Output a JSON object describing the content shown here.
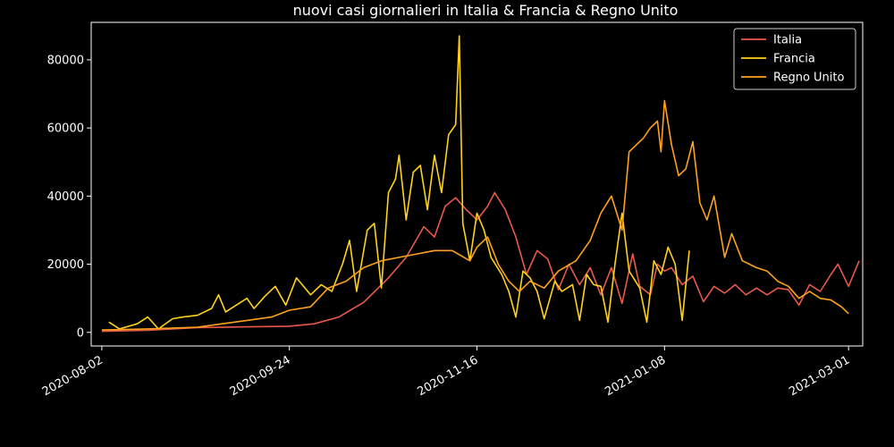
{
  "chart_data": {
    "type": "line",
    "title": "nuovi casi giornalieri in Italia & Francia & Regno Unito",
    "xlabel": "",
    "ylabel": "",
    "x_range": [
      "2020-07-30",
      "2021-03-05"
    ],
    "ylim": [
      -4000,
      91000
    ],
    "x_ticks": [
      "2020-08-02",
      "2020-09-24",
      "2020-11-16",
      "2021-01-08",
      "2021-03-01"
    ],
    "y_ticks": [
      0,
      20000,
      40000,
      60000,
      80000
    ],
    "y_tick_labels": [
      "0",
      "20000",
      "40000",
      "60000",
      "80000"
    ],
    "grid": false,
    "legend_position": "top-right",
    "series": [
      {
        "name": "Italia",
        "color": "#e8594a",
        "points": [
          [
            "2020-08-02",
            300
          ],
          [
            "2020-08-15",
            600
          ],
          [
            "2020-08-29",
            1400
          ],
          [
            "2020-09-10",
            1600
          ],
          [
            "2020-09-24",
            1800
          ],
          [
            "2020-10-01",
            2500
          ],
          [
            "2020-10-08",
            4500
          ],
          [
            "2020-10-15",
            8800
          ],
          [
            "2020-10-22",
            16000
          ],
          [
            "2020-10-27",
            22000
          ],
          [
            "2020-11-01",
            31000
          ],
          [
            "2020-11-04",
            28000
          ],
          [
            "2020-11-07",
            37000
          ],
          [
            "2020-11-10",
            39500
          ],
          [
            "2020-11-13",
            36000
          ],
          [
            "2020-11-16",
            33000
          ],
          [
            "2020-11-19",
            37000
          ],
          [
            "2020-11-21",
            41000
          ],
          [
            "2020-11-24",
            36000
          ],
          [
            "2020-11-27",
            28000
          ],
          [
            "2020-11-30",
            17000
          ],
          [
            "2020-12-03",
            24000
          ],
          [
            "2020-12-06",
            21500
          ],
          [
            "2020-12-09",
            12500
          ],
          [
            "2020-12-12",
            20000
          ],
          [
            "2020-12-15",
            14000
          ],
          [
            "2020-12-18",
            19000
          ],
          [
            "2020-12-21",
            11000
          ],
          [
            "2020-12-24",
            19000
          ],
          [
            "2020-12-27",
            8500
          ],
          [
            "2020-12-30",
            23000
          ],
          [
            "2021-01-01",
            13500
          ],
          [
            "2021-01-04",
            11000
          ],
          [
            "2021-01-06",
            20000
          ],
          [
            "2021-01-08",
            18000
          ],
          [
            "2021-01-10",
            19000
          ],
          [
            "2021-01-13",
            14000
          ],
          [
            "2021-01-16",
            16500
          ],
          [
            "2021-01-19",
            9000
          ],
          [
            "2021-01-22",
            13500
          ],
          [
            "2021-01-25",
            11500
          ],
          [
            "2021-01-28",
            14000
          ],
          [
            "2021-01-31",
            11000
          ],
          [
            "2021-02-03",
            13000
          ],
          [
            "2021-02-06",
            11000
          ],
          [
            "2021-02-09",
            13000
          ],
          [
            "2021-02-12",
            12500
          ],
          [
            "2021-02-15",
            8000
          ],
          [
            "2021-02-18",
            14000
          ],
          [
            "2021-02-21",
            12000
          ],
          [
            "2021-02-24",
            17000
          ],
          [
            "2021-02-26",
            20000
          ],
          [
            "2021-03-01",
            13500
          ],
          [
            "2021-03-04",
            21000
          ]
        ]
      },
      {
        "name": "Francia",
        "color": "#ffd21a",
        "points": [
          [
            "2020-08-04",
            3000
          ],
          [
            "2020-08-07",
            1000
          ],
          [
            "2020-08-12",
            2500
          ],
          [
            "2020-08-15",
            4500
          ],
          [
            "2020-08-18",
            1000
          ],
          [
            "2020-08-22",
            4000
          ],
          [
            "2020-08-25",
            4500
          ],
          [
            "2020-08-29",
            5000
          ],
          [
            "2020-09-02",
            7000
          ],
          [
            "2020-09-04",
            11000
          ],
          [
            "2020-09-06",
            6000
          ],
          [
            "2020-09-09",
            8000
          ],
          [
            "2020-09-12",
            10000
          ],
          [
            "2020-09-14",
            7000
          ],
          [
            "2020-09-17",
            10500
          ],
          [
            "2020-09-20",
            13500
          ],
          [
            "2020-09-23",
            8000
          ],
          [
            "2020-09-26",
            16000
          ],
          [
            "2020-09-30",
            11000
          ],
          [
            "2020-10-03",
            14000
          ],
          [
            "2020-10-06",
            12000
          ],
          [
            "2020-10-09",
            20000
          ],
          [
            "2020-10-11",
            27000
          ],
          [
            "2020-10-13",
            12000
          ],
          [
            "2020-10-16",
            30000
          ],
          [
            "2020-10-18",
            32000
          ],
          [
            "2020-10-20",
            13000
          ],
          [
            "2020-10-22",
            41000
          ],
          [
            "2020-10-24",
            45000
          ],
          [
            "2020-10-25",
            52000
          ],
          [
            "2020-10-27",
            33000
          ],
          [
            "2020-10-29",
            47000
          ],
          [
            "2020-10-31",
            49000
          ],
          [
            "2020-11-02",
            36000
          ],
          [
            "2020-11-04",
            52000
          ],
          [
            "2020-11-06",
            41000
          ],
          [
            "2020-11-08",
            58000
          ],
          [
            "2020-11-10",
            61000
          ],
          [
            "2020-11-11",
            87000
          ],
          [
            "2020-11-12",
            32000
          ],
          [
            "2020-11-14",
            21000
          ],
          [
            "2020-11-16",
            35000
          ],
          [
            "2020-11-18",
            30000
          ],
          [
            "2020-11-20",
            22000
          ],
          [
            "2020-11-23",
            17000
          ],
          [
            "2020-11-25",
            12000
          ],
          [
            "2020-11-27",
            4500
          ],
          [
            "2020-11-29",
            18000
          ],
          [
            "2020-12-01",
            16000
          ],
          [
            "2020-12-03",
            12000
          ],
          [
            "2020-12-05",
            4000
          ],
          [
            "2020-12-08",
            15000
          ],
          [
            "2020-12-10",
            12000
          ],
          [
            "2020-12-13",
            14000
          ],
          [
            "2020-12-15",
            3500
          ],
          [
            "2020-12-17",
            17000
          ],
          [
            "2020-12-19",
            14000
          ],
          [
            "2020-12-21",
            13500
          ],
          [
            "2020-12-23",
            3000
          ],
          [
            "2020-12-25",
            20000
          ],
          [
            "2020-12-27",
            35000
          ],
          [
            "2020-12-29",
            18000
          ],
          [
            "2021-01-01",
            13000
          ],
          [
            "2021-01-03",
            3000
          ],
          [
            "2021-01-05",
            21000
          ],
          [
            "2021-01-07",
            17000
          ],
          [
            "2021-01-09",
            25000
          ],
          [
            "2021-01-11",
            20000
          ],
          [
            "2021-01-13",
            3500
          ],
          [
            "2021-01-15",
            24000
          ]
        ]
      },
      {
        "name": "Regno Unito",
        "color": "#ffa21a",
        "points": [
          [
            "2020-08-02",
            700
          ],
          [
            "2020-08-15",
            1000
          ],
          [
            "2020-08-29",
            1500
          ],
          [
            "2020-09-05",
            2500
          ],
          [
            "2020-09-12",
            3500
          ],
          [
            "2020-09-19",
            4500
          ],
          [
            "2020-09-24",
            6500
          ],
          [
            "2020-09-30",
            7500
          ],
          [
            "2020-10-05",
            13000
          ],
          [
            "2020-10-10",
            15000
          ],
          [
            "2020-10-15",
            19000
          ],
          [
            "2020-10-20",
            21000
          ],
          [
            "2020-10-25",
            22000
          ],
          [
            "2020-10-30",
            23000
          ],
          [
            "2020-11-04",
            24000
          ],
          [
            "2020-11-09",
            24000
          ],
          [
            "2020-11-14",
            21000
          ],
          [
            "2020-11-16",
            25000
          ],
          [
            "2020-11-19",
            28000
          ],
          [
            "2020-11-22",
            20000
          ],
          [
            "2020-11-25",
            15000
          ],
          [
            "2020-11-28",
            12000
          ],
          [
            "2020-12-01",
            15000
          ],
          [
            "2020-12-05",
            13000
          ],
          [
            "2020-12-09",
            18000
          ],
          [
            "2020-12-14",
            21000
          ],
          [
            "2020-12-18",
            27000
          ],
          [
            "2020-12-21",
            35000
          ],
          [
            "2020-12-24",
            40000
          ],
          [
            "2020-12-27",
            30000
          ],
          [
            "2020-12-29",
            53000
          ],
          [
            "2020-12-31",
            55000
          ],
          [
            "2021-01-02",
            57000
          ],
          [
            "2021-01-04",
            60000
          ],
          [
            "2021-01-06",
            62000
          ],
          [
            "2021-01-07",
            53000
          ],
          [
            "2021-01-08",
            68000
          ],
          [
            "2021-01-10",
            55000
          ],
          [
            "2021-01-12",
            46000
          ],
          [
            "2021-01-14",
            48000
          ],
          [
            "2021-01-16",
            56000
          ],
          [
            "2021-01-18",
            38000
          ],
          [
            "2021-01-20",
            33000
          ],
          [
            "2021-01-22",
            40000
          ],
          [
            "2021-01-25",
            22000
          ],
          [
            "2021-01-27",
            29000
          ],
          [
            "2021-01-30",
            21000
          ],
          [
            "2021-02-03",
            19000
          ],
          [
            "2021-02-06",
            18000
          ],
          [
            "2021-02-09",
            15000
          ],
          [
            "2021-02-12",
            13500
          ],
          [
            "2021-02-15",
            10000
          ],
          [
            "2021-02-18",
            12000
          ],
          [
            "2021-02-21",
            10000
          ],
          [
            "2021-02-24",
            9500
          ],
          [
            "2021-02-27",
            7500
          ],
          [
            "2021-03-01",
            5500
          ]
        ]
      }
    ]
  }
}
